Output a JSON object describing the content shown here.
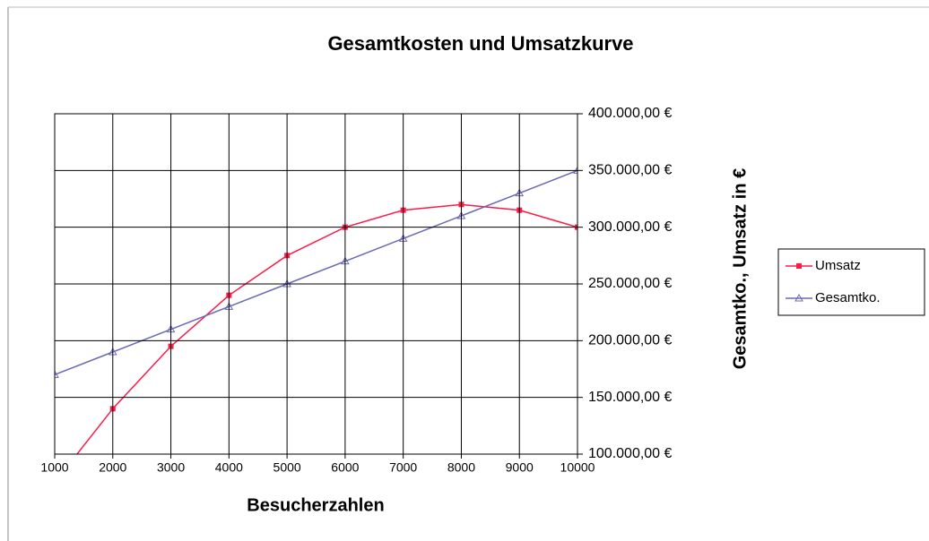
{
  "chart_data": {
    "type": "line",
    "title": "Gesamtkosten und Umsatzkurve",
    "xlabel": "Besucherzahlen",
    "ylabel": "Gesamtko., Umsatz in €",
    "x": [
      1000,
      2000,
      3000,
      4000,
      5000,
      6000,
      7000,
      8000,
      9000,
      10000
    ],
    "series": [
      {
        "name": "Umsatz",
        "color": "#ff1a4a",
        "marker": "square",
        "values": [
          75000,
          140000,
          195000,
          240000,
          275000,
          300000,
          315000,
          320000,
          315000,
          300000
        ]
      },
      {
        "name": "Gesamtko.",
        "color": "#6a6ab4",
        "marker": "triangle",
        "values": [
          170000,
          190000,
          210000,
          230000,
          250000,
          270000,
          290000,
          310000,
          330000,
          350000
        ]
      }
    ],
    "xlim": [
      1000,
      10000
    ],
    "xticks": [
      1000,
      2000,
      3000,
      4000,
      5000,
      6000,
      7000,
      8000,
      9000,
      10000
    ],
    "ylim": [
      100000,
      400000
    ],
    "yticks": [
      {
        "value": 100000,
        "label": "100.000,00 €"
      },
      {
        "value": 150000,
        "label": "150.000,00 €"
      },
      {
        "value": 200000,
        "label": "200.000,00 €"
      },
      {
        "value": 250000,
        "label": "250.000,00 €"
      },
      {
        "value": 300000,
        "label": "300.000,00 €"
      },
      {
        "value": 350000,
        "label": "350.000,00 €"
      },
      {
        "value": 400000,
        "label": "400.000,00 €"
      }
    ],
    "y_axis_side": "right",
    "grid": true,
    "legend": "right"
  }
}
